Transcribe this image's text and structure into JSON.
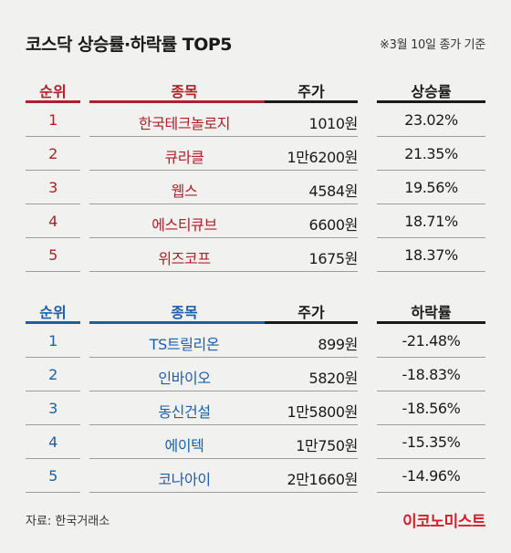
{
  "title": "코스닥 상승률·하락률 TOP5",
  "note": "※3월 10일 종가 기준",
  "rise_table": {
    "headers": {
      "rank": "순위",
      "name": "종목",
      "price": "주가",
      "rate": "상승률"
    },
    "rows": [
      {
        "rank": "1",
        "name": "한국테크놀로지",
        "price": "1010원",
        "rate": "23.02%"
      },
      {
        "rank": "2",
        "name": "큐라클",
        "price": "1만6200원",
        "rate": "21.35%"
      },
      {
        "rank": "3",
        "name": "웹스",
        "price": "4584원",
        "rate": "19.56%"
      },
      {
        "rank": "4",
        "name": "에스티큐브",
        "price": "6600원",
        "rate": "18.71%"
      },
      {
        "rank": "5",
        "name": "위즈코프",
        "price": "1675원",
        "rate": "18.37%"
      }
    ]
  },
  "fall_table": {
    "headers": {
      "rank": "순위",
      "name": "종목",
      "price": "주가",
      "rate": "하락률"
    },
    "rows": [
      {
        "rank": "1",
        "name": "TS트릴리온",
        "price": "899원",
        "rate": "-21.48%"
      },
      {
        "rank": "2",
        "name": "인바이오",
        "price": "5820원",
        "rate": "-18.83%"
      },
      {
        "rank": "3",
        "name": "동신건설",
        "price": "1만5800원",
        "rate": "-18.56%"
      },
      {
        "rank": "4",
        "name": "에이텍",
        "price": "1만750원",
        "rate": "-15.35%"
      },
      {
        "rank": "5",
        "name": "코나아이",
        "price": "2만1660원",
        "rate": "-14.96%"
      }
    ]
  },
  "source": "자료: 한국거래소",
  "logo": "이코노미스트",
  "colors": {
    "rise": "#b0202a",
    "fall": "#1e5ea8",
    "logo": "#d3202a",
    "background": "#f1f1ef"
  }
}
